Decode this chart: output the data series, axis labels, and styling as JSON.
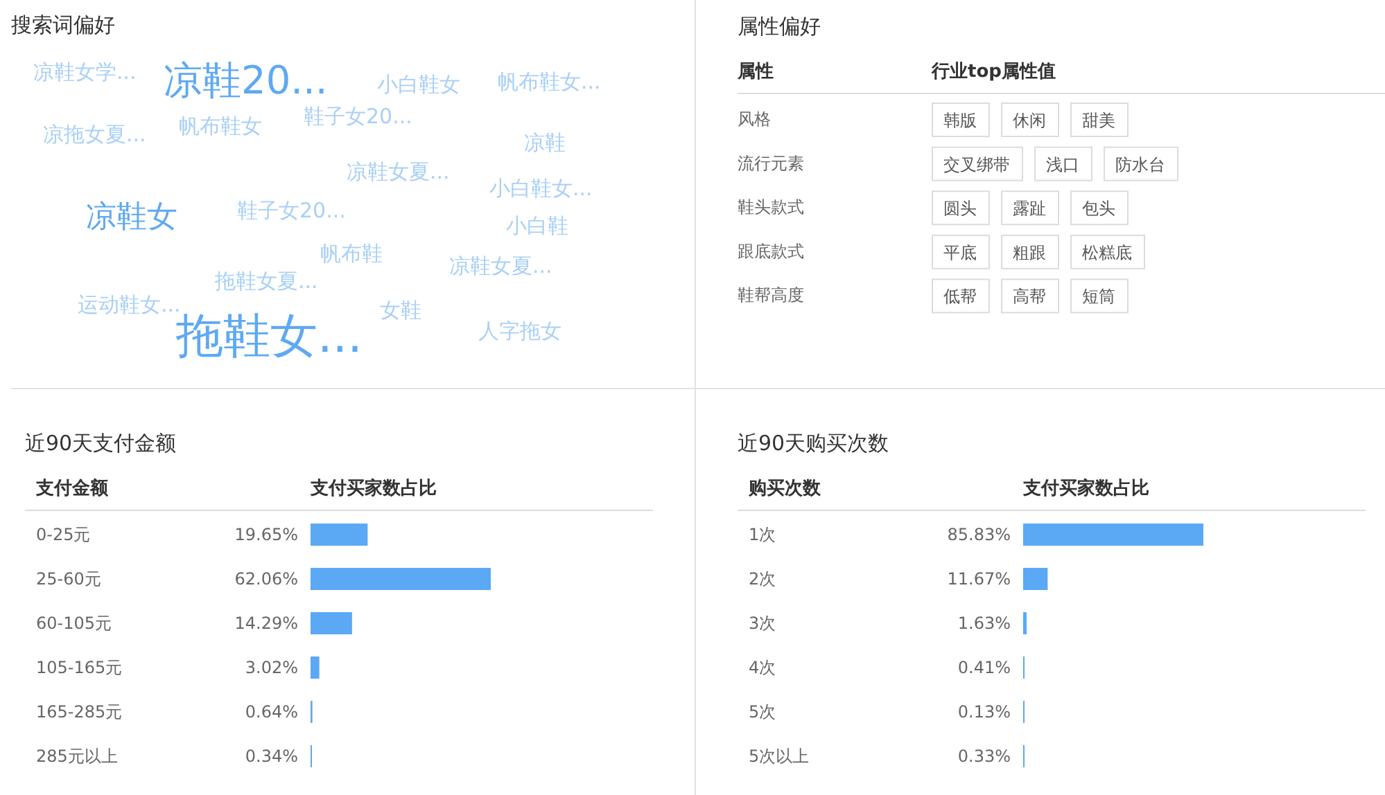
{
  "chart_data": [
    {
      "type": "other",
      "title": "搜索词偏好",
      "annotations": [
        "凉鞋女学...",
        "凉鞋20...",
        "小白鞋女",
        "帆布鞋女...",
        "鞋子女20...",
        "帆布鞋女",
        "凉拖女夏...",
        "凉鞋",
        "凉鞋女夏...",
        "小白鞋女...",
        "鞋子女20...",
        "凉鞋女",
        "小白鞋",
        "帆布鞋",
        "凉鞋女夏...",
        "拖鞋女夏...",
        "运动鞋女...",
        "女鞋",
        "人字拖女",
        "拖鞋女..."
      ],
      "colors": [
        "#a9d0f5",
        "#5ea9f2",
        "#a9d0f5",
        "#a9d0f5",
        "#a9d0f5",
        "#a9d0f5",
        "#a9d0f5",
        "#a9d0f5",
        "#a9d0f5",
        "#a9d0f5",
        "#a9d0f5",
        "#5ea9f2",
        "#a9d0f5",
        "#a9d0f5",
        "#a9d0f5",
        "#a9d0f5",
        "#a9d0f5",
        "#a9d0f5",
        "#a9d0f5",
        "#5ea9f2"
      ]
    },
    {
      "type": "other",
      "title": "属性偏好",
      "ylabel": "属性",
      "xlabel": "行业top属性值",
      "y_categories": [
        "风格",
        "流行元素",
        "鞋头款式",
        "跟底款式",
        "鞋帮高度"
      ],
      "cell_labels": [
        [
          "韩版",
          "休闲",
          "甜美"
        ],
        [
          "交叉绑带",
          "浅口",
          "防水台"
        ],
        [
          "圆头",
          "露趾",
          "包头"
        ],
        [
          "平底",
          "粗跟",
          "松糕底"
        ],
        [
          "低帮",
          "高帮",
          "短筒"
        ]
      ]
    },
    {
      "type": "bar",
      "orientation": "horizontal",
      "title": "近90天支付金额",
      "ylabel": "支付金额",
      "xlabel": "支付买家数占比",
      "categories": [
        "0-25元",
        "25-60元",
        "60-105元",
        "105-165元",
        "165-285元",
        "285元以上"
      ],
      "values": [
        19.65,
        62.06,
        14.29,
        3.02,
        0.64,
        0.34
      ],
      "value_labels": [
        "19.65%",
        "62.06%",
        "14.29%",
        "3.02%",
        "0.64%",
        "0.34%"
      ],
      "color": "#5ba8f5"
    },
    {
      "type": "bar",
      "orientation": "horizontal",
      "title": "近90天购买次数",
      "ylabel": "购买次数",
      "xlabel": "支付买家数占比",
      "categories": [
        "1次",
        "2次",
        "3次",
        "4次",
        "5次",
        "5次以上"
      ],
      "values": [
        85.83,
        11.67,
        1.63,
        0.41,
        0.13,
        0.33
      ],
      "value_labels": [
        "85.83%",
        "11.67%",
        "1.63%",
        "0.41%",
        "0.13%",
        "0.33%"
      ],
      "color": "#5ba8f5"
    }
  ]
}
